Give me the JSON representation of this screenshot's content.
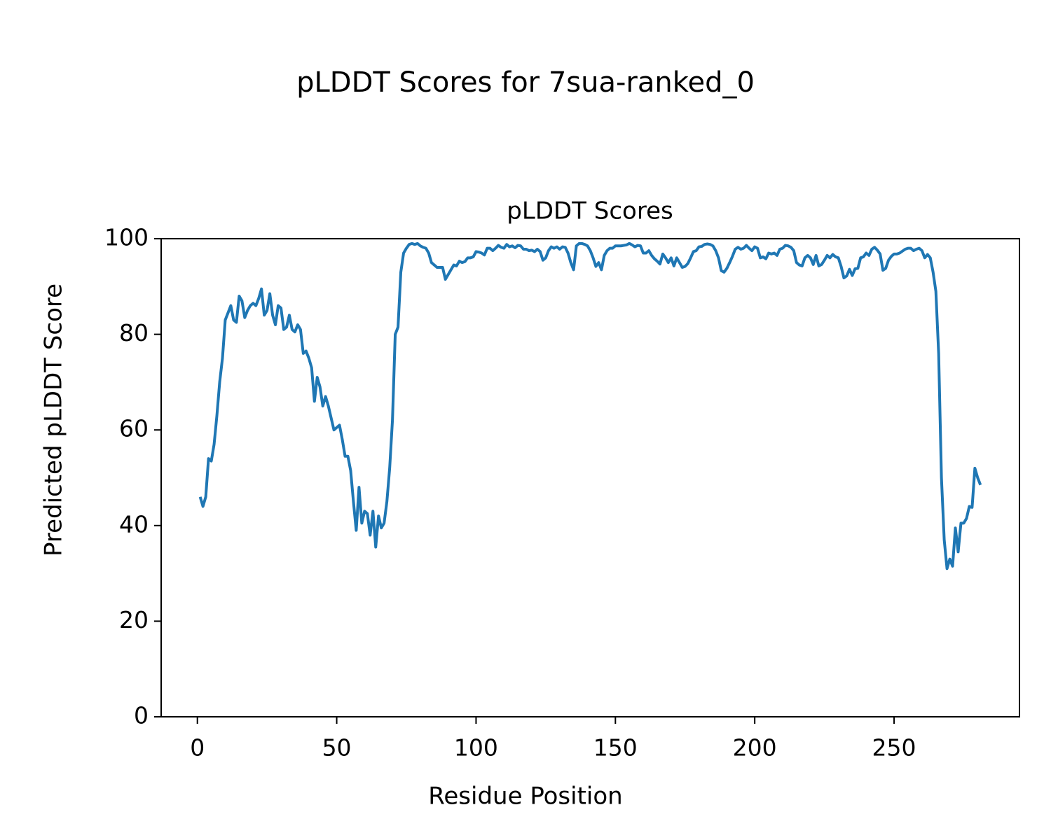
{
  "chart_data": {
    "type": "line",
    "title": "pLDDT Scores for 7sua-ranked_0",
    "subtitle": "pLDDT Scores",
    "x_label": "Residue Position",
    "y_label": "Predicted pLDDT Score",
    "xlim": [
      -13,
      295
    ],
    "ylim": [
      0,
      100
    ],
    "xticks": [
      0,
      50,
      100,
      150,
      200,
      250
    ],
    "yticks": [
      0,
      20,
      40,
      60,
      80,
      100
    ],
    "grid": false,
    "x": [
      1,
      2,
      3,
      4,
      5,
      6,
      7,
      8,
      9,
      10,
      11,
      12,
      13,
      14,
      15,
      16,
      17,
      18,
      19,
      20,
      21,
      22,
      23,
      24,
      25,
      26,
      27,
      28,
      29,
      30,
      31,
      32,
      33,
      34,
      35,
      36,
      37,
      38,
      39,
      40,
      41,
      42,
      43,
      44,
      45,
      46,
      47,
      48,
      49,
      50,
      51,
      52,
      53,
      54,
      55,
      56,
      57,
      58,
      59,
      60,
      61,
      62,
      63,
      64,
      65,
      66,
      67,
      68,
      69,
      70,
      71,
      72,
      73,
      74,
      75,
      76,
      77,
      78,
      79,
      80,
      81,
      82,
      83,
      84,
      85,
      86,
      87,
      88,
      89,
      90,
      91,
      92,
      93,
      94,
      95,
      96,
      97,
      98,
      99,
      100,
      101,
      102,
      103,
      104,
      105,
      106,
      107,
      108,
      109,
      110,
      111,
      112,
      113,
      114,
      115,
      116,
      117,
      118,
      119,
      120,
      121,
      122,
      123,
      124,
      125,
      126,
      127,
      128,
      129,
      130,
      131,
      132,
      133,
      134,
      135,
      136,
      137,
      138,
      139,
      140,
      141,
      142,
      143,
      144,
      145,
      146,
      147,
      148,
      149,
      150,
      151,
      152,
      153,
      154,
      155,
      156,
      157,
      158,
      159,
      160,
      161,
      162,
      163,
      164,
      165,
      166,
      167,
      168,
      169,
      170,
      171,
      172,
      173,
      174,
      175,
      176,
      177,
      178,
      179,
      180,
      181,
      182,
      183,
      184,
      185,
      186,
      187,
      188,
      189,
      190,
      191,
      192,
      193,
      194,
      195,
      196,
      197,
      198,
      199,
      200,
      201,
      202,
      203,
      204,
      205,
      206,
      207,
      208,
      209,
      210,
      211,
      212,
      213,
      214,
      215,
      216,
      217,
      218,
      219,
      220,
      221,
      222,
      223,
      224,
      225,
      226,
      227,
      228,
      229,
      230,
      231,
      232,
      233,
      234,
      235,
      236,
      237,
      238,
      239,
      240,
      241,
      242,
      243,
      244,
      245,
      246,
      247,
      248,
      249,
      250,
      251,
      252,
      253,
      254,
      255,
      256,
      257,
      258,
      259,
      260,
      261,
      262,
      263,
      264,
      265,
      266,
      267,
      268,
      269,
      270,
      271,
      272,
      273,
      274,
      275,
      276,
      277,
      278,
      279,
      280,
      281
    ],
    "series": [
      {
        "name": "pLDDT",
        "color": "#1f77b4",
        "values": [
          46,
          44,
          46,
          54,
          53.5,
          57,
          63,
          70,
          75,
          83,
          84.5,
          86,
          83,
          82.5,
          88,
          87,
          83.5,
          85,
          86,
          86.5,
          86,
          87.5,
          89.5,
          84,
          85,
          88.5,
          84,
          82,
          86,
          85.5,
          81,
          81.5,
          84,
          81,
          80.5,
          82,
          81,
          76,
          76.5,
          75,
          73,
          66,
          71,
          69,
          65,
          67,
          65,
          62.5,
          60,
          60.5,
          61,
          58,
          54.5,
          54.5,
          51.5,
          45,
          39,
          48,
          40.5,
          43,
          42.5,
          38,
          43,
          35.5,
          42,
          39.5,
          40.5,
          45,
          52,
          62,
          80,
          81.5,
          93,
          97,
          98,
          98.8,
          99,
          98.8,
          99,
          98.5,
          98.2,
          98,
          97,
          95,
          94.5,
          94,
          94,
          94,
          91.5,
          92.5,
          93.5,
          94.5,
          94.3,
          95.3,
          95,
          95.2,
          96,
          96,
          96.2,
          97.3,
          97.2,
          97,
          96.6,
          98,
          98,
          97.5,
          98,
          98.6,
          98.2,
          98,
          98.8,
          98.3,
          98.5,
          98.1,
          98.6,
          98.5,
          97.8,
          97.8,
          97.5,
          97.6,
          97.3,
          97.8,
          97.3,
          95.5,
          96,
          97.5,
          98.3,
          98,
          98.3,
          97.8,
          98.3,
          98.2,
          97,
          95,
          93.5,
          98.5,
          99,
          99,
          98.8,
          98.5,
          97.5,
          96,
          94.2,
          95,
          93.5,
          96.5,
          97.5,
          98,
          98,
          98.5,
          98.5,
          98.5,
          98.6,
          98.7,
          99,
          98.7,
          98.3,
          98.6,
          98.5,
          97,
          97,
          97.5,
          96.5,
          95.8,
          95.3,
          94.7,
          96.8,
          96,
          95,
          96,
          94.3,
          96,
          95,
          94,
          94.2,
          94.8,
          96,
          97.3,
          97.5,
          98.3,
          98.4,
          98.8,
          98.9,
          98.8,
          98.5,
          97.5,
          96,
          93.3,
          93,
          93.8,
          95,
          96.3,
          97.8,
          98.2,
          97.8,
          98,
          98.6,
          98,
          97.5,
          98.3,
          98,
          96,
          96.2,
          95.8,
          97,
          96.8,
          97,
          96.5,
          97.8,
          98,
          98.6,
          98.5,
          98.2,
          97.5,
          95,
          94.5,
          94.3,
          96,
          96.5,
          96,
          94.6,
          96.5,
          94.3,
          94.6,
          95.5,
          96.5,
          96,
          96.7,
          96.2,
          96,
          94.2,
          91.8,
          92.2,
          93.6,
          92.3,
          93.7,
          93.8,
          96,
          96.2,
          97,
          96.5,
          97.8,
          98.2,
          97.6,
          96.8,
          93.4,
          93.8,
          95.5,
          96.3,
          96.8,
          96.8,
          97,
          97.4,
          97.8,
          98,
          98,
          97.5,
          97.8,
          98,
          97.5,
          96,
          96.7,
          96,
          93,
          89,
          76,
          50,
          37,
          31,
          33,
          31.5,
          39.5,
          34.5,
          40.5,
          40.5,
          41.5,
          44,
          43.8,
          52,
          50,
          48.5
        ]
      }
    ]
  }
}
